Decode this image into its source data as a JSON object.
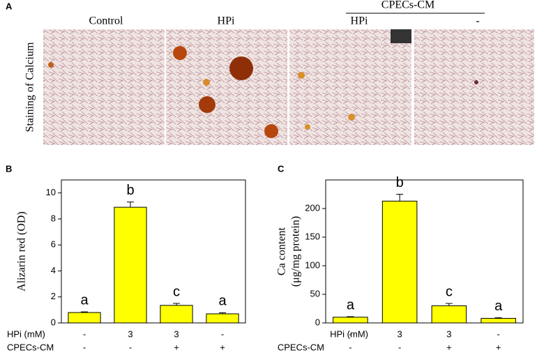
{
  "panel_a": {
    "label": "A",
    "ylabel": "Staining of Calcium",
    "group": "CPECs-CM",
    "columns": [
      "Control",
      "HPi",
      "HPi",
      "-"
    ]
  },
  "chart_data": [
    {
      "type": "bar",
      "panel": "B",
      "ylabel": "Alizarin red (OD)",
      "values": [
        0.8,
        8.9,
        1.35,
        0.7
      ],
      "errors": [
        0.05,
        0.4,
        0.15,
        0.08
      ],
      "annotations": [
        "a",
        "b",
        "c",
        "a"
      ],
      "color": "#ffff00",
      "ylim": [
        0,
        11
      ],
      "yticks": [
        0,
        2,
        4,
        6,
        8,
        10
      ],
      "rows": [
        {
          "label": "HPi (mM)",
          "values": [
            "-",
            "3",
            "3",
            "-"
          ]
        },
        {
          "label": "CPECs-CM",
          "values": [
            "-",
            "-",
            "+",
            "+"
          ]
        }
      ]
    },
    {
      "type": "bar",
      "panel": "C",
      "ylabel": [
        "Ca content",
        "(μg/mg protein)"
      ],
      "values": [
        10,
        213,
        30,
        8
      ],
      "errors": [
        1,
        12,
        4,
        1
      ],
      "annotations": [
        "a",
        "b",
        "c",
        "a"
      ],
      "color": "#ffff00",
      "ylim": [
        0,
        250
      ],
      "yticks": [
        0,
        50,
        100,
        150,
        200
      ],
      "rows": [
        {
          "label": "HPi (mM)",
          "values": [
            "-",
            "3",
            "3",
            "-"
          ]
        },
        {
          "label": "CPECs-CM",
          "values": [
            "-",
            "-",
            "+",
            "+"
          ]
        }
      ]
    }
  ]
}
